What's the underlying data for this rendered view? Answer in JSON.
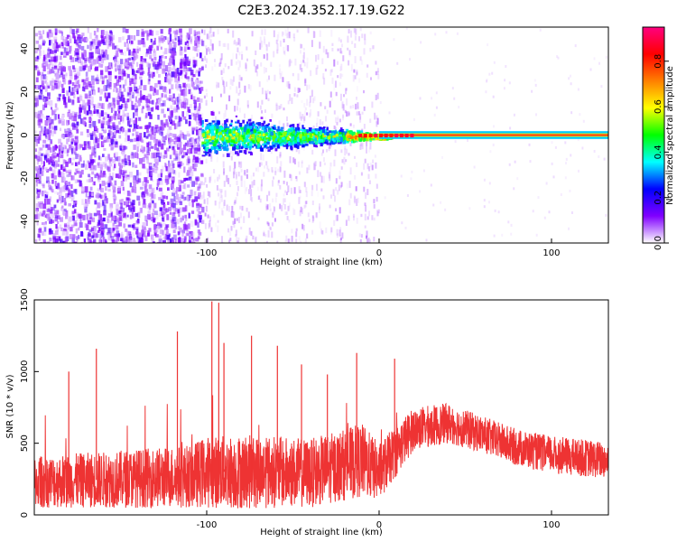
{
  "title": "C2E3.2024.352.17.19.G22",
  "colors": {
    "snr_line": "#ee3333",
    "axis": "#000000",
    "ridge": "#ee2222"
  },
  "chart_data": [
    {
      "type": "heatmap",
      "xlabel": "Height of straight line (km)",
      "ylabel": "Frequency (Hz)",
      "xlim": [
        -200,
        133
      ],
      "ylim": [
        -50,
        50
      ],
      "xticks": [
        -100,
        0,
        100
      ],
      "yticks": [
        -40,
        -20,
        0,
        20,
        40
      ],
      "colorbar": {
        "label": "Normalized spectral amplitude",
        "range": [
          0,
          0.95
        ],
        "ticks": [
          "0.0",
          "0.2",
          "0.4",
          "0.6",
          "0.8"
        ],
        "colors": [
          "#ffffff",
          "#8000ff",
          "#0000ff",
          "#00ffff",
          "#00ff00",
          "#ffff00",
          "#ff8000",
          "#ff0000",
          "#ff0080"
        ]
      },
      "regions": [
        {
          "x": [
            -200,
            -103
          ],
          "description": "dense broadband purple noise"
        },
        {
          "x": [
            -103,
            0
          ],
          "description": "spread signal near 0 Hz, widening toward lower heights"
        },
        {
          "x": [
            0,
            133
          ],
          "description": "narrow strong ridge at about 0 Hz"
        }
      ]
    },
    {
      "type": "line",
      "xlabel": "Height of straight line (km)",
      "ylabel": "SNR (10 * v/v)",
      "xlim": [
        -200,
        133
      ],
      "ylim": [
        0,
        1500
      ],
      "xticks": [
        -100,
        0,
        100
      ],
      "yticks": [
        0,
        500,
        1000,
        1500
      ],
      "envelope": {
        "x": [
          -200,
          -150,
          -110,
          -100,
          -80,
          -60,
          -40,
          -20,
          -10,
          0,
          10,
          20,
          40,
          60,
          80,
          100,
          133
        ],
        "mean": [
          230,
          250,
          270,
          300,
          300,
          300,
          290,
          350,
          380,
          300,
          450,
          600,
          640,
          560,
          470,
          420,
          380
        ],
        "spread": [
          180,
          200,
          220,
          250,
          260,
          250,
          240,
          250,
          260,
          200,
          180,
          150,
          140,
          130,
          130,
          130,
          130
        ]
      },
      "spikes": [
        {
          "x": -97,
          "y": 1490
        },
        {
          "x": -93,
          "y": 1480
        },
        {
          "x": -90,
          "y": 1200
        },
        {
          "x": -74,
          "y": 1250
        },
        {
          "x": -59,
          "y": 1180
        },
        {
          "x": -117,
          "y": 1280
        },
        {
          "x": -164,
          "y": 1160
        },
        {
          "x": -45,
          "y": 1050
        },
        {
          "x": -13,
          "y": 1130
        },
        {
          "x": 9,
          "y": 1090
        },
        {
          "x": -180,
          "y": 1000
        },
        {
          "x": -30,
          "y": 980
        }
      ]
    }
  ]
}
